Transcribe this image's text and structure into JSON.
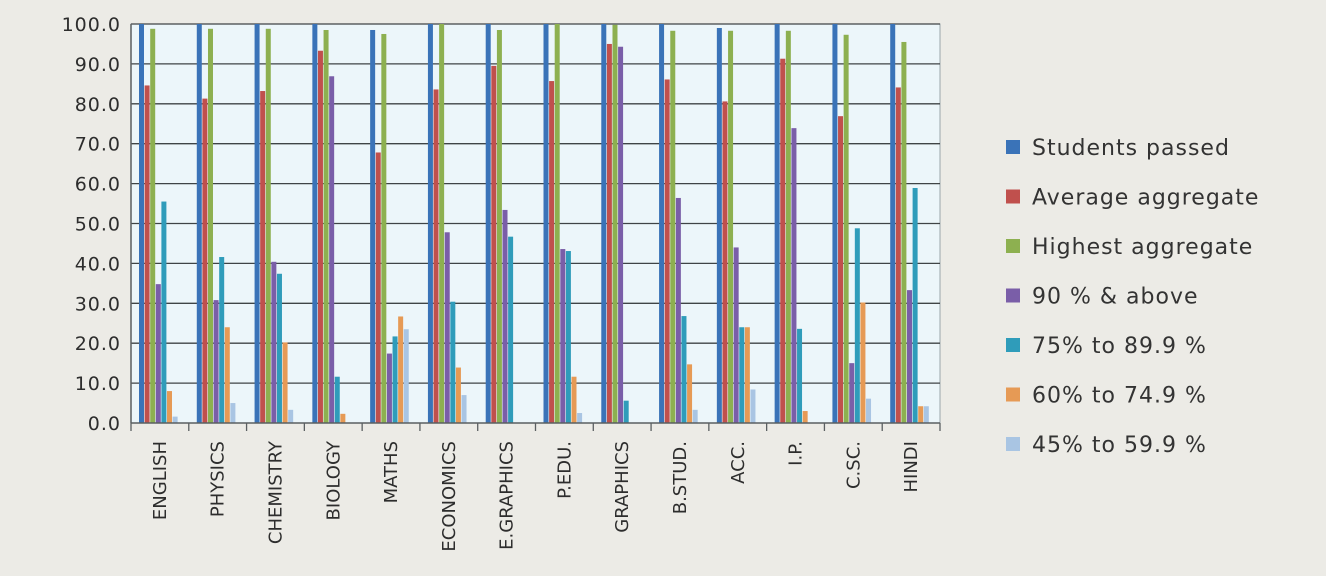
{
  "chart_data": {
    "type": "bar",
    "categories": [
      "ENGLISH",
      "PHYSICS",
      "CHEMISTRY",
      "BIOLOGY",
      "MATHS",
      "ECONOMICS",
      "E.GRAPHICS",
      "P.EDU.",
      "GRAPHICS",
      "B.STUD.",
      "ACC.",
      "I.P.",
      "C.SC.",
      "HINDI"
    ],
    "series": [
      {
        "name": "Students passed",
        "color": "#3a73b8",
        "values": [
          100.0,
          100.0,
          100.0,
          100.0,
          98.5,
          100.0,
          100.0,
          100.0,
          100.0,
          100.0,
          99.0,
          100.0,
          100.0,
          100.0
        ]
      },
      {
        "name": "Average aggregate",
        "color": "#c0504d",
        "values": [
          84.6,
          81.3,
          83.2,
          93.3,
          67.8,
          83.6,
          89.5,
          85.7,
          95.0,
          86.1,
          80.6,
          91.3,
          76.9,
          84.1
        ]
      },
      {
        "name": "Highest aggregate",
        "color": "#8db050",
        "values": [
          98.8,
          98.8,
          98.8,
          98.5,
          97.5,
          100.0,
          98.5,
          100.0,
          99.8,
          98.3,
          98.3,
          98.3,
          97.3,
          95.5
        ]
      },
      {
        "name": "90 % & above",
        "color": "#7a5ea8",
        "values": [
          34.8,
          30.8,
          40.4,
          86.9,
          17.4,
          47.8,
          53.4,
          43.6,
          94.3,
          56.4,
          44.0,
          73.9,
          15.0,
          33.3
        ]
      },
      {
        "name": "75% to 89.9 %",
        "color": "#2f9cba",
        "values": [
          55.5,
          41.6,
          37.4,
          11.6,
          21.7,
          30.4,
          46.7,
          43.1,
          5.6,
          26.8,
          24.0,
          23.6,
          48.8,
          58.9
        ]
      },
      {
        "name": "60% to 74.9 %",
        "color": "#e69a55",
        "values": [
          8.0,
          24.0,
          20.2,
          2.3,
          26.7,
          13.9,
          0.0,
          11.6,
          0.0,
          14.7,
          24.0,
          3.0,
          30.2,
          4.2
        ]
      },
      {
        "name": "45% to 59.9 %",
        "color": "#a9c5e3",
        "values": [
          1.6,
          5.0,
          3.3,
          0.0,
          23.5,
          7.0,
          0.0,
          2.5,
          0.0,
          3.3,
          8.4,
          0.0,
          6.1,
          4.2
        ]
      }
    ],
    "y_ticks": [
      "0.0",
      "10.0",
      "20.0",
      "30.0",
      "40.0",
      "50.0",
      "60.0",
      "70.0",
      "80.0",
      "90.0",
      "100.0"
    ],
    "ylim": [
      0,
      100
    ],
    "grid": true,
    "legend_position": "right",
    "plot_background": "#ecf6fa"
  }
}
